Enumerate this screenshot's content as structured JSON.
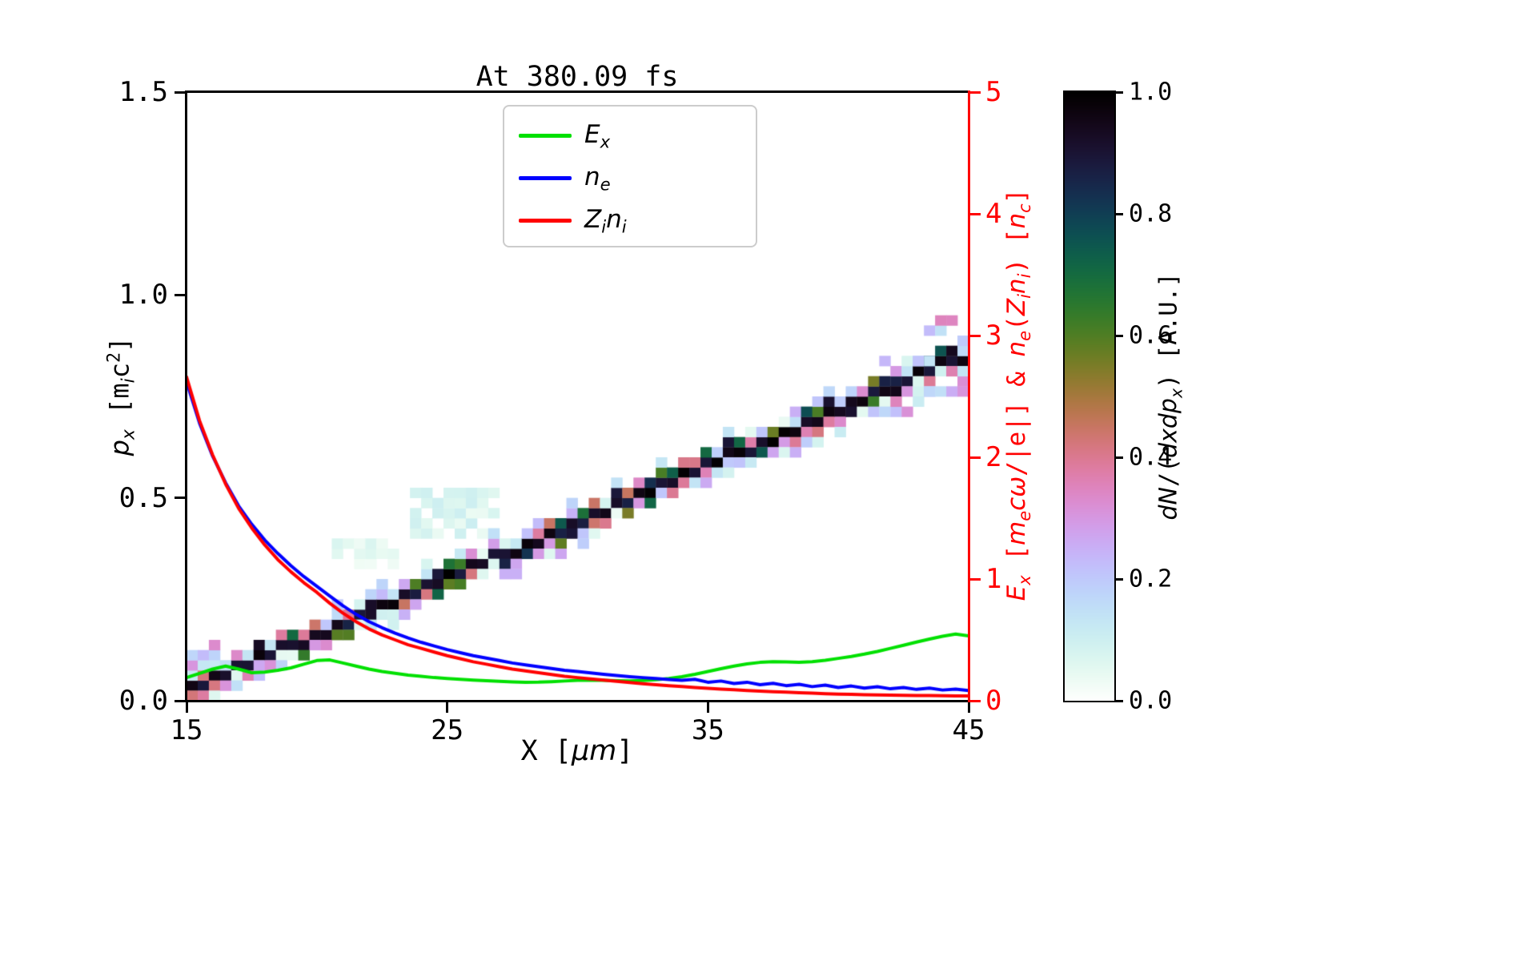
{
  "title": "At 380.09 fs",
  "axes": {
    "x": {
      "range": [
        15,
        45
      ],
      "ticks": [
        {
          "v": 15,
          "label": "15"
        },
        {
          "v": 25,
          "label": "25"
        },
        {
          "v": 35,
          "label": "35"
        },
        {
          "v": 45,
          "label": "45"
        }
      ],
      "label_segments": [
        {
          "s": "r",
          "t": "X ["
        },
        {
          "s": "i",
          "t": "μm"
        },
        {
          "s": "r",
          "t": "]"
        }
      ]
    },
    "y_left": {
      "range": [
        0,
        1.5
      ],
      "ticks": [
        {
          "v": 0.0,
          "label": "0.0"
        },
        {
          "v": 0.5,
          "label": "0.5"
        },
        {
          "v": 1.0,
          "label": "1.0"
        },
        {
          "v": 1.5,
          "label": "1.5"
        }
      ],
      "label_segments": [
        {
          "s": "i",
          "t": "p"
        },
        {
          "s": "sub",
          "t": "x"
        },
        {
          "s": "r",
          "t": " [m"
        },
        {
          "s": "sub",
          "t": "i"
        },
        {
          "s": "r",
          "t": "c"
        },
        {
          "s": "sup",
          "t": "2"
        },
        {
          "s": "r",
          "t": "]"
        }
      ]
    },
    "y_right": {
      "range": [
        0,
        5
      ],
      "color": "#ff0000",
      "ticks": [
        {
          "v": 0,
          "label": "0"
        },
        {
          "v": 1,
          "label": "1"
        },
        {
          "v": 2,
          "label": "2"
        },
        {
          "v": 3,
          "label": "3"
        },
        {
          "v": 4,
          "label": "4"
        },
        {
          "v": 5,
          "label": "5"
        }
      ],
      "label_segments": [
        {
          "s": "i",
          "t": "E"
        },
        {
          "s": "sub",
          "t": "x"
        },
        {
          "s": "r",
          "t": " ["
        },
        {
          "s": "i",
          "t": "m"
        },
        {
          "s": "sub",
          "t": "e"
        },
        {
          "s": "i",
          "t": "cω"
        },
        {
          "s": "r",
          "t": "/|e|] & "
        },
        {
          "s": "i",
          "t": "n"
        },
        {
          "s": "sub",
          "t": "e"
        },
        {
          "s": "r",
          "t": "("
        },
        {
          "s": "i",
          "t": "Z"
        },
        {
          "s": "sub",
          "t": "i"
        },
        {
          "s": "i",
          "t": "n"
        },
        {
          "s": "sub",
          "t": "i"
        },
        {
          "s": "r",
          "t": ") ["
        },
        {
          "s": "i",
          "t": "n"
        },
        {
          "s": "sub",
          "t": "c"
        },
        {
          "s": "r",
          "t": "]"
        }
      ]
    }
  },
  "colorbar": {
    "range": [
      0,
      1
    ],
    "ticks": [
      {
        "v": 0.0,
        "label": "0.0"
      },
      {
        "v": 0.2,
        "label": "0.2"
      },
      {
        "v": 0.4,
        "label": "0.4"
      },
      {
        "v": 0.6,
        "label": "0.6"
      },
      {
        "v": 0.8,
        "label": "0.8"
      },
      {
        "v": 1.0,
        "label": "1.0"
      }
    ],
    "label_segments": [
      {
        "s": "i",
        "t": "dN"
      },
      {
        "s": "r",
        "t": "/("
      },
      {
        "s": "i",
        "t": "dxdp"
      },
      {
        "s": "sub",
        "t": "x"
      },
      {
        "s": "r",
        "t": ") [A.U.]"
      }
    ]
  },
  "legend": {
    "items": [
      {
        "color": "#00e000",
        "segments": [
          {
            "s": "i",
            "t": "E"
          },
          {
            "s": "sub",
            "t": "x"
          }
        ]
      },
      {
        "color": "#0000ff",
        "segments": [
          {
            "s": "i",
            "t": "n"
          },
          {
            "s": "sub",
            "t": "e"
          }
        ]
      },
      {
        "color": "#ff0000",
        "segments": [
          {
            "s": "i",
            "t": "Z"
          },
          {
            "s": "sub",
            "t": "i"
          },
          {
            "s": "i",
            "t": "n"
          },
          {
            "s": "sub",
            "t": "i"
          }
        ]
      }
    ]
  },
  "chart_data": {
    "type": [
      "heatmap",
      "line"
    ],
    "title": "At 380.09 fs",
    "xlabel": "X [um]",
    "ylabel_left": "p_x [m_i c^2]",
    "ylabel_right": "E_x [m_e c w/|e|] & n_e(Z_i n_i) [n_c]",
    "xlim": [
      15,
      45
    ],
    "ylim_left": [
      0,
      1.5
    ],
    "ylim_right": [
      0,
      5
    ],
    "legend_position": "upper center",
    "grid": false,
    "heatmap": {
      "quantity": "dN/(dxdp_x) [A.U.]",
      "description": "ion phase-space density: narrow diagonal band rising linearly from (x=15, p_x=0.03) to (x=45, p_x=0.85), core value ~1.0 (black) with scattered pastel low-value cells (0.1-0.4) along its edges, extra dispersion near both ends",
      "colormap": "cubehelix reversed (0 = white, 1 = black)",
      "value_range": [
        0,
        1
      ],
      "p_start": 0.025,
      "p_end": 0.855,
      "x_bins": 70,
      "p_bins": 60,
      "seed": 20250412,
      "faint_patches": [
        {
          "x": 25.0,
          "p": 0.45,
          "v": 0.07,
          "rx": 1.3,
          "rp": 0.035
        },
        {
          "x": 21.6,
          "p": 0.35,
          "v": 0.05,
          "rx": 0.8,
          "rp": 0.022
        }
      ]
    },
    "x_um": [
      15,
      15.5,
      16,
      16.5,
      17,
      17.5,
      18,
      18.5,
      19,
      19.5,
      20,
      20.5,
      21,
      21.5,
      22,
      22.5,
      23,
      23.5,
      24,
      24.5,
      25,
      25.5,
      26,
      26.5,
      27,
      27.5,
      28,
      28.5,
      29,
      29.5,
      30,
      30.5,
      31,
      31.5,
      32,
      32.5,
      33,
      33.5,
      34,
      34.5,
      35,
      35.5,
      36,
      36.5,
      37,
      37.5,
      38,
      38.5,
      39,
      39.5,
      40,
      40.5,
      41,
      41.5,
      42,
      42.5,
      43,
      43.5,
      44,
      44.5,
      45
    ],
    "series": [
      {
        "name": "E_x",
        "color": "#00e000",
        "axis": "right",
        "units": "m_e c w / |e|",
        "y": [
          0.19,
          0.225,
          0.26,
          0.285,
          0.26,
          0.23,
          0.235,
          0.25,
          0.27,
          0.3,
          0.33,
          0.335,
          0.31,
          0.285,
          0.26,
          0.24,
          0.225,
          0.21,
          0.2,
          0.19,
          0.183,
          0.176,
          0.17,
          0.164,
          0.159,
          0.155,
          0.152,
          0.153,
          0.157,
          0.162,
          0.167,
          0.17,
          0.168,
          0.165,
          0.163,
          0.166,
          0.172,
          0.182,
          0.197,
          0.217,
          0.24,
          0.263,
          0.285,
          0.303,
          0.315,
          0.321,
          0.319,
          0.316,
          0.321,
          0.332,
          0.348,
          0.364,
          0.383,
          0.405,
          0.43,
          0.456,
          0.482,
          0.507,
          0.53,
          0.548,
          0.532
        ]
      },
      {
        "name": "n_e",
        "color": "#0000ff",
        "axis": "right",
        "units": "n_c",
        "y": [
          2.62,
          2.28,
          2.01,
          1.79,
          1.6,
          1.45,
          1.32,
          1.21,
          1.11,
          1.02,
          0.94,
          0.86,
          0.78,
          0.71,
          0.65,
          0.6,
          0.555,
          0.515,
          0.48,
          0.45,
          0.42,
          0.395,
          0.37,
          0.35,
          0.33,
          0.31,
          0.295,
          0.28,
          0.265,
          0.25,
          0.24,
          0.228,
          0.217,
          0.207,
          0.198,
          0.19,
          0.182,
          0.175,
          0.168,
          0.176,
          0.152,
          0.162,
          0.142,
          0.152,
          0.132,
          0.143,
          0.124,
          0.135,
          0.116,
          0.128,
          0.109,
          0.121,
          0.103,
          0.115,
          0.098,
          0.109,
          0.093,
          0.103,
          0.088,
          0.096,
          0.083
        ]
      },
      {
        "name": "Z_i n_i",
        "color": "#ff0000",
        "axis": "right",
        "units": "n_c",
        "y": [
          2.66,
          2.3,
          2.02,
          1.78,
          1.58,
          1.42,
          1.28,
          1.16,
          1.06,
          0.97,
          0.89,
          0.8,
          0.72,
          0.65,
          0.59,
          0.54,
          0.5,
          0.46,
          0.43,
          0.4,
          0.37,
          0.345,
          0.32,
          0.3,
          0.28,
          0.26,
          0.245,
          0.23,
          0.215,
          0.2,
          0.19,
          0.18,
          0.17,
          0.16,
          0.15,
          0.14,
          0.132,
          0.124,
          0.116,
          0.109,
          0.102,
          0.096,
          0.09,
          0.084,
          0.079,
          0.074,
          0.07,
          0.066,
          0.062,
          0.058,
          0.055,
          0.052,
          0.05,
          0.048,
          0.046,
          0.044,
          0.043,
          0.042,
          0.041,
          0.04,
          0.04
        ]
      }
    ]
  }
}
